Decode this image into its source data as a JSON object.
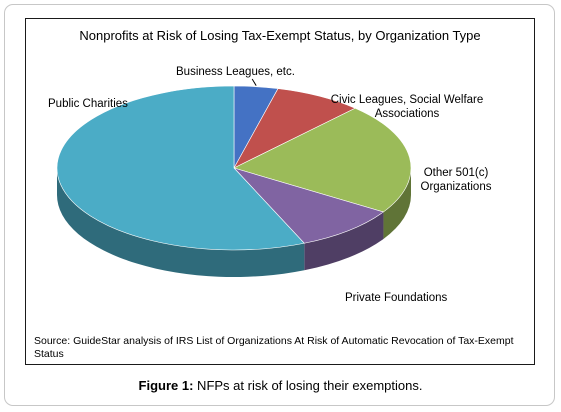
{
  "chart_data": {
    "type": "pie",
    "title": "Nonprofits at Risk of Losing Tax-Exempt Status, by Organization Type",
    "slices": [
      {
        "label": "Business Leagues, etc.",
        "value": 4.0,
        "color": "#4472c4"
      },
      {
        "label": "Civic Leagues, Social Welfare Associations",
        "value": 8.0,
        "color": "#c0504d"
      },
      {
        "label": "Other 501(c) Organizations",
        "value": 22.0,
        "color": "#9bbb59"
      },
      {
        "label": "Private Foundations",
        "value": 9.5,
        "color": "#8064a2"
      },
      {
        "label": "Public Charities",
        "value": 56.5,
        "color": "#4bacc6"
      }
    ],
    "source": "Source: GuideStar analysis of IRS List of Organizations At Risk of Automatic Revocation of Tax-Exempt Status"
  },
  "caption": {
    "prefix": "Figure 1:",
    "text": " NFPs at risk of losing their exemptions."
  }
}
